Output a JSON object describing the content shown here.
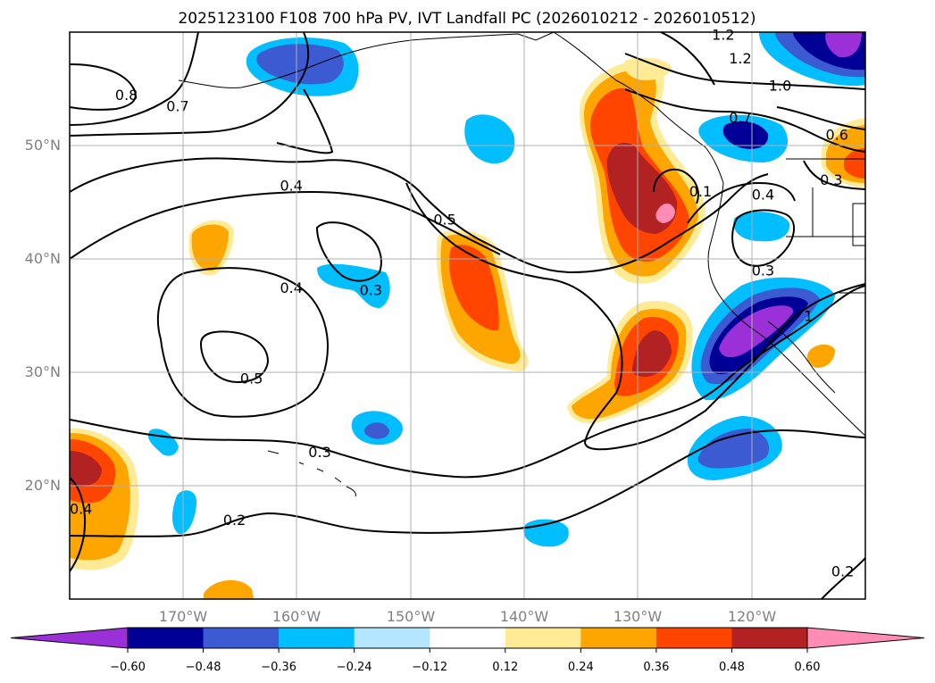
{
  "chart_data": {
    "type": "contour-map",
    "title": "2025123100 F108 700 hPa PV, IVT Landfall PC (2026010212 - 2026010512)",
    "map": {
      "lon_range": [
        -180,
        -110
      ],
      "lat_range": [
        10,
        60
      ],
      "lon_ticks": [
        -170,
        -160,
        -150,
        -140,
        -130,
        -120
      ],
      "lat_ticks": [
        20,
        30,
        40,
        50
      ],
      "lon_tick_labels": [
        "170°W",
        "160°W",
        "150°W",
        "140°W",
        "130°W",
        "120°W"
      ],
      "lat_tick_labels": [
        "20°N",
        "30°N",
        "40°N",
        "50°N"
      ],
      "grid": true
    },
    "colorbar": {
      "levels": [
        -0.6,
        -0.48,
        -0.36,
        -0.24,
        -0.12,
        0.12,
        0.24,
        0.36,
        0.48,
        0.6
      ],
      "tick_labels": [
        "−0.60",
        "−0.48",
        "−0.36",
        "−0.24",
        "−0.12",
        "0.12",
        "0.24",
        "0.36",
        "0.48",
        "0.60"
      ],
      "colors": [
        "#9b30d9",
        "#000096",
        "#3c5ad2",
        "#00beff",
        "#b4e6ff",
        "#ffffff",
        "#ffeb96",
        "#ffa500",
        "#ff4500",
        "#b22222",
        "#ff8cb4"
      ],
      "extend": "both",
      "orientation": "horizontal"
    },
    "pv_contour_labels": [
      {
        "text": "0.8",
        "lon": -175,
        "lat": 54.5
      },
      {
        "text": "0.7",
        "lon": -170.5,
        "lat": 53.5
      },
      {
        "text": "0.4",
        "lon": -160.5,
        "lat": 46.5
      },
      {
        "text": "0.5",
        "lon": -147,
        "lat": 43.5
      },
      {
        "text": "0.4",
        "lon": -160.5,
        "lat": 37.5
      },
      {
        "text": "0.3",
        "lon": -153.5,
        "lat": 37.3
      },
      {
        "text": "0.5",
        "lon": -164,
        "lat": 29.5
      },
      {
        "text": "0.3",
        "lon": -158,
        "lat": 23
      },
      {
        "text": "0.2",
        "lon": -165.5,
        "lat": 17
      },
      {
        "text": "0.4",
        "lon": -179,
        "lat": 18
      },
      {
        "text": "1.2",
        "lon": -122.5,
        "lat": 59.8
      },
      {
        "text": "1.2",
        "lon": -121,
        "lat": 57.7
      },
      {
        "text": "1.0",
        "lon": -117.5,
        "lat": 55.3
      },
      {
        "text": "0.7",
        "lon": -121,
        "lat": 52.5
      },
      {
        "text": "0.6",
        "lon": -112.5,
        "lat": 51
      },
      {
        "text": "0.3",
        "lon": -113,
        "lat": 47
      },
      {
        "text": "0.4",
        "lon": -119,
        "lat": 45.7
      },
      {
        "text": "0.1",
        "lon": -124.5,
        "lat": 46
      },
      {
        "text": "0.3",
        "lon": -119,
        "lat": 39
      },
      {
        "text": "1",
        "lon": -115,
        "lat": 35
      },
      {
        "text": "0.2",
        "lon": -112,
        "lat": 12.5
      }
    ]
  }
}
